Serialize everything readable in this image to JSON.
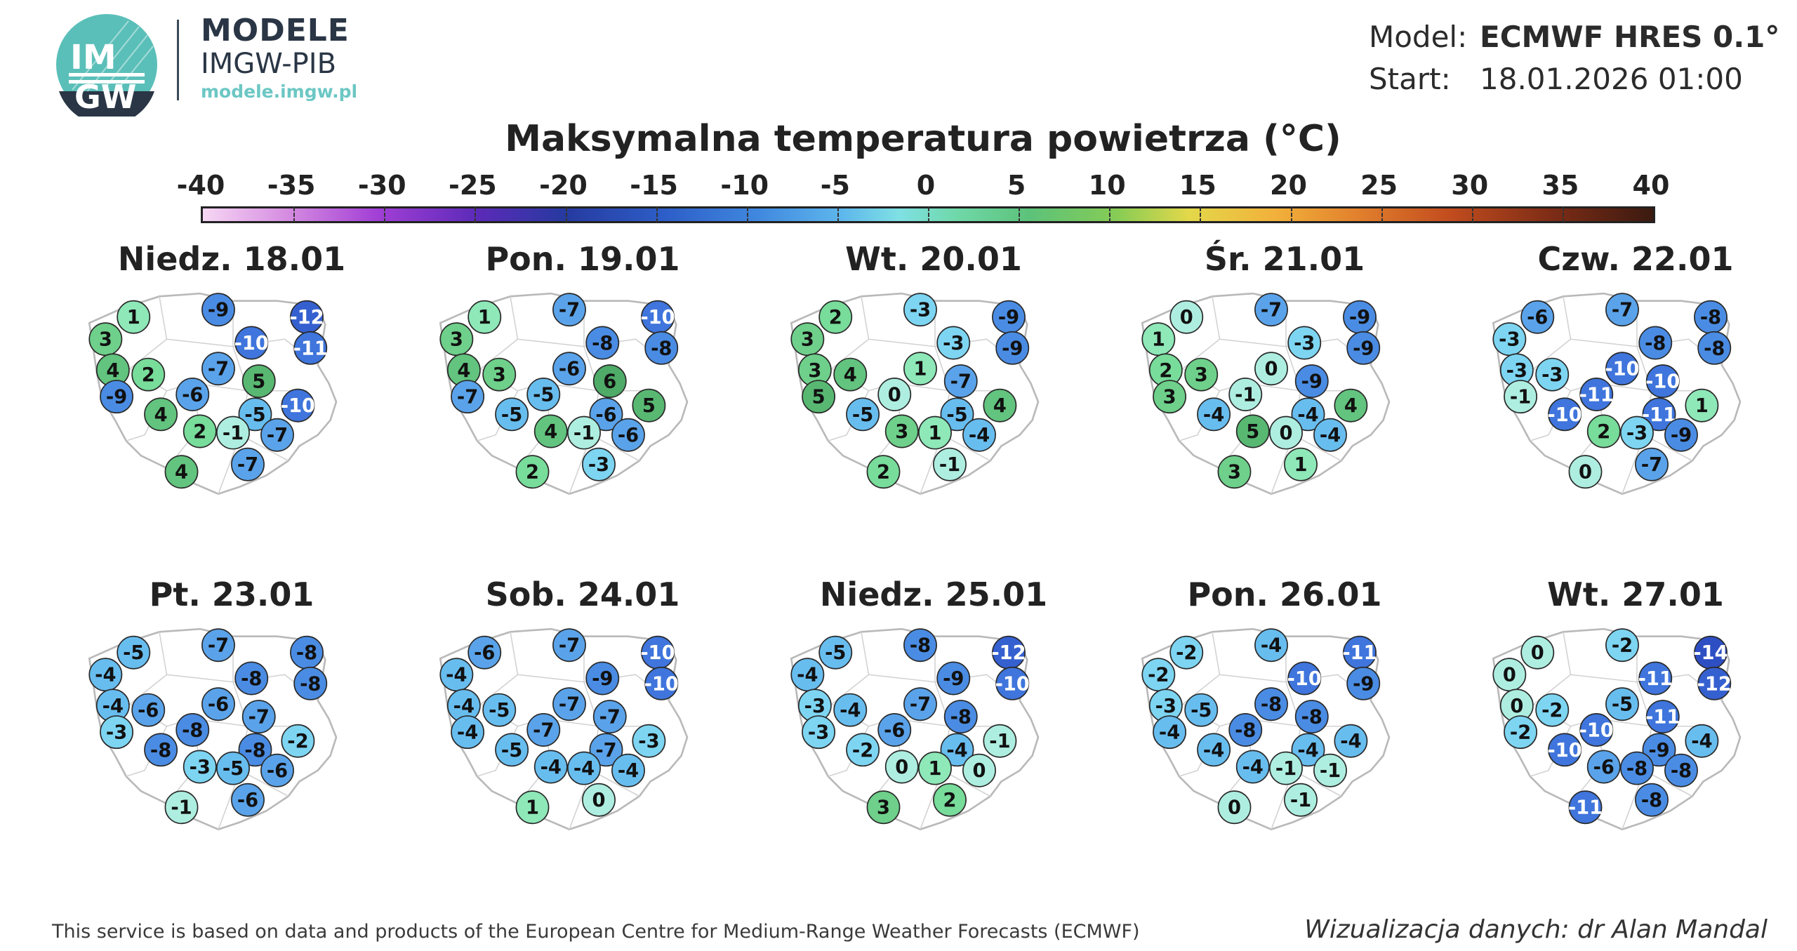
{
  "header": {
    "logo": {
      "badge_top": "IM",
      "badge_bottom": "GW",
      "title": "MODELE",
      "subtitle": "IMGW-PIB",
      "url": "modele.imgw.pl"
    },
    "model_label": "Model:",
    "model_value": "ECMWF HRES 0.1°",
    "start_label": "Start:",
    "start_value": "18.01.2026 01:00"
  },
  "title": "Maksymalna temperatura powietrza (°C)",
  "colorbar": {
    "ticks": [
      "-40",
      "-35",
      "-30",
      "-25",
      "-20",
      "-15",
      "-10",
      "-5",
      "0",
      "5",
      "10",
      "15",
      "20",
      "25",
      "30",
      "35",
      "40"
    ]
  },
  "panels": [
    {
      "title": "Niedz. 18.01",
      "values": [
        1,
        -9,
        -12,
        3,
        -10,
        -11,
        4,
        -7,
        2,
        5,
        -9,
        -6,
        -10,
        4,
        -5,
        2,
        -1,
        -7,
        -7,
        4
      ]
    },
    {
      "title": "Pon. 19.01",
      "values": [
        1,
        -7,
        -10,
        3,
        -8,
        -8,
        4,
        -6,
        3,
        6,
        -7,
        -5,
        5,
        -5,
        -6,
        4,
        -1,
        -6,
        -3,
        2
      ]
    },
    {
      "title": "Wt. 20.01",
      "values": [
        2,
        -3,
        -9,
        3,
        -3,
        -9,
        3,
        1,
        4,
        -7,
        5,
        0,
        4,
        -5,
        -5,
        3,
        1,
        -4,
        -1,
        2
      ]
    },
    {
      "title": "Śr. 21.01",
      "values": [
        0,
        -7,
        -9,
        1,
        -3,
        -9,
        2,
        0,
        3,
        -9,
        3,
        -1,
        4,
        -4,
        -4,
        5,
        0,
        -4,
        1,
        3
      ]
    },
    {
      "title": "Czw. 22.01",
      "values": [
        -6,
        -7,
        -8,
        -3,
        -8,
        -8,
        -3,
        -10,
        -3,
        -10,
        -1,
        -11,
        1,
        -10,
        -11,
        2,
        -3,
        -9,
        -7,
        0
      ]
    },
    {
      "title": "Pt. 23.01",
      "values": [
        -5,
        -7,
        -8,
        -4,
        -8,
        -8,
        -4,
        -6,
        -6,
        -7,
        -3,
        -8,
        -2,
        -8,
        -8,
        -3,
        -5,
        -6,
        -6,
        -1
      ]
    },
    {
      "title": "Sob. 24.01",
      "values": [
        -6,
        -7,
        -10,
        -4,
        -9,
        -10,
        -4,
        -7,
        -5,
        -7,
        -4,
        -7,
        -3,
        -5,
        -7,
        -4,
        -4,
        -4,
        0,
        1
      ]
    },
    {
      "title": "Niedz. 25.01",
      "values": [
        -5,
        -8,
        -12,
        -4,
        -9,
        -10,
        -3,
        -7,
        -4,
        -8,
        -3,
        -6,
        -1,
        -2,
        -4,
        0,
        1,
        0,
        2,
        3
      ]
    },
    {
      "title": "Pon. 26.01",
      "values": [
        -2,
        -4,
        -11,
        -2,
        -10,
        -9,
        -3,
        -8,
        -5,
        -8,
        -4,
        -8,
        -4,
        -4,
        -4,
        -4,
        -1,
        -1,
        -1,
        0
      ]
    },
    {
      "title": "Wt. 27.01",
      "values": [
        0,
        -2,
        -14,
        0,
        -11,
        -12,
        0,
        -5,
        -2,
        -11,
        -2,
        -10,
        -4,
        -10,
        -9,
        -6,
        -8,
        -8,
        -8,
        -11
      ]
    }
  ],
  "footer": {
    "left": "This service is based on data and products of the European Centre for Medium-Range Weather Forecasts (ECMWF)",
    "right": "Wizualizacja danych: dr Alan Mandal"
  }
}
